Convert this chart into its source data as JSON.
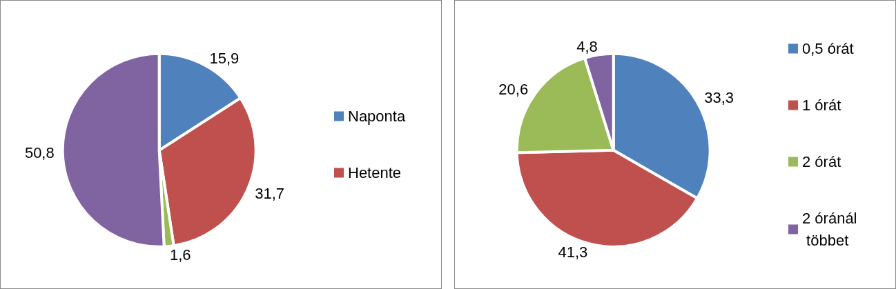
{
  "chart_data": [
    {
      "type": "pie",
      "categories": [
        "Naponta",
        "Hetente",
        null,
        null
      ],
      "values": [
        15.9,
        31.7,
        1.6,
        50.8
      ],
      "colors": [
        "#4f81bd",
        "#c0504d",
        "#9bbb59",
        "#8064a2"
      ],
      "value_labels": [
        "15,9",
        "31,7",
        "1,6",
        "50,8"
      ],
      "legend": "right"
    },
    {
      "type": "pie",
      "categories": [
        "0,5 órát",
        "1 órát",
        "2 órát",
        "2 óránál többet"
      ],
      "values": [
        33.3,
        41.3,
        20.6,
        4.8
      ],
      "colors": [
        "#4f81bd",
        "#c0504d",
        "#9bbb59",
        "#8064a2"
      ],
      "value_labels": [
        "33,3",
        "41,3",
        "20,6",
        "4,8"
      ],
      "legend": "right"
    }
  ]
}
